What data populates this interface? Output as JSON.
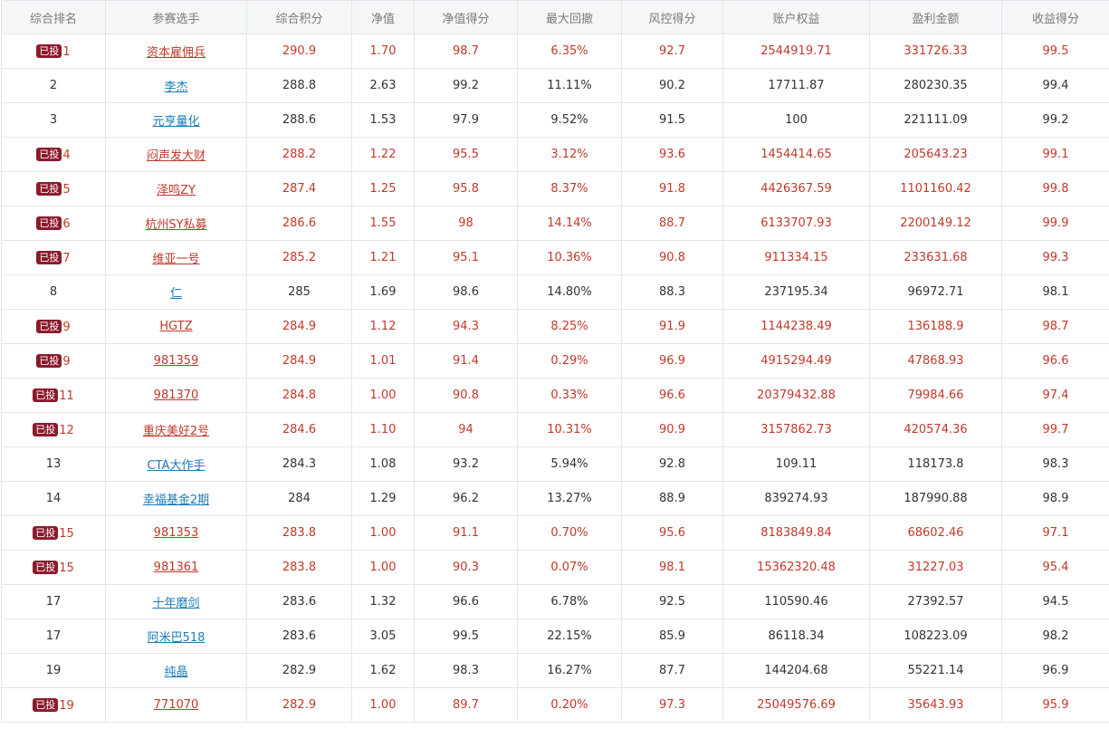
{
  "headers": [
    "综合排名",
    "参赛选手",
    "综合积分",
    "净值",
    "净值得分",
    "最大回撤",
    "风控得分",
    "账户权益",
    "盈利金额",
    "收益得分"
  ],
  "badge_label": "已投",
  "rows": [
    {
      "invested": true,
      "rank": "1",
      "name": "资本雇佣兵",
      "score": "290.9",
      "nav": "1.70",
      "nav_score": "98.7",
      "drawdown": "6.35%",
      "risk_score": "92.7",
      "equity": "2544919.71",
      "profit": "331726.33",
      "return_score": "99.5"
    },
    {
      "invested": false,
      "rank": "2",
      "name": "李杰",
      "score": "288.8",
      "nav": "2.63",
      "nav_score": "99.2",
      "drawdown": "11.11%",
      "risk_score": "90.2",
      "equity": "17711.87",
      "profit": "280230.35",
      "return_score": "99.4"
    },
    {
      "invested": false,
      "rank": "3",
      "name": "元亨量化",
      "score": "288.6",
      "nav": "1.53",
      "nav_score": "97.9",
      "drawdown": "9.52%",
      "risk_score": "91.5",
      "equity": "100",
      "profit": "221111.09",
      "return_score": "99.2"
    },
    {
      "invested": true,
      "rank": "4",
      "name": "闷声发大财",
      "score": "288.2",
      "nav": "1.22",
      "nav_score": "95.5",
      "drawdown": "3.12%",
      "risk_score": "93.6",
      "equity": "1454414.65",
      "profit": "205643.23",
      "return_score": "99.1"
    },
    {
      "invested": true,
      "rank": "5",
      "name": "泽鸣ZY",
      "score": "287.4",
      "nav": "1.25",
      "nav_score": "95.8",
      "drawdown": "8.37%",
      "risk_score": "91.8",
      "equity": "4426367.59",
      "profit": "1101160.42",
      "return_score": "99.8"
    },
    {
      "invested": true,
      "rank": "6",
      "name": "杭州SY私募",
      "score": "286.6",
      "nav": "1.55",
      "nav_score": "98",
      "drawdown": "14.14%",
      "risk_score": "88.7",
      "equity": "6133707.93",
      "profit": "2200149.12",
      "return_score": "99.9"
    },
    {
      "invested": true,
      "rank": "7",
      "name": "维亚一号",
      "score": "285.2",
      "nav": "1.21",
      "nav_score": "95.1",
      "drawdown": "10.36%",
      "risk_score": "90.8",
      "equity": "911334.15",
      "profit": "233631.68",
      "return_score": "99.3"
    },
    {
      "invested": false,
      "rank": "8",
      "name": "仁",
      "score": "285",
      "nav": "1.69",
      "nav_score": "98.6",
      "drawdown": "14.80%",
      "risk_score": "88.3",
      "equity": "237195.34",
      "profit": "96972.71",
      "return_score": "98.1"
    },
    {
      "invested": true,
      "rank": "9",
      "name": "HGTZ",
      "score": "284.9",
      "nav": "1.12",
      "nav_score": "94.3",
      "drawdown": "8.25%",
      "risk_score": "91.9",
      "equity": "1144238.49",
      "profit": "136188.9",
      "return_score": "98.7"
    },
    {
      "invested": true,
      "rank": "9",
      "name": "981359",
      "score": "284.9",
      "nav": "1.01",
      "nav_score": "91.4",
      "drawdown": "0.29%",
      "risk_score": "96.9",
      "equity": "4915294.49",
      "profit": "47868.93",
      "return_score": "96.6"
    },
    {
      "invested": true,
      "rank": "11",
      "name": "981370",
      "score": "284.8",
      "nav": "1.00",
      "nav_score": "90.8",
      "drawdown": "0.33%",
      "risk_score": "96.6",
      "equity": "20379432.88",
      "profit": "79984.66",
      "return_score": "97.4"
    },
    {
      "invested": true,
      "rank": "12",
      "name": "重庆美好2号",
      "score": "284.6",
      "nav": "1.10",
      "nav_score": "94",
      "drawdown": "10.31%",
      "risk_score": "90.9",
      "equity": "3157862.73",
      "profit": "420574.36",
      "return_score": "99.7"
    },
    {
      "invested": false,
      "rank": "13",
      "name": "CTA大作手",
      "score": "284.3",
      "nav": "1.08",
      "nav_score": "93.2",
      "drawdown": "5.94%",
      "risk_score": "92.8",
      "equity": "109.11",
      "profit": "118173.8",
      "return_score": "98.3"
    },
    {
      "invested": false,
      "rank": "14",
      "name": "幸福基金2期",
      "score": "284",
      "nav": "1.29",
      "nav_score": "96.2",
      "drawdown": "13.27%",
      "risk_score": "88.9",
      "equity": "839274.93",
      "profit": "187990.88",
      "return_score": "98.9"
    },
    {
      "invested": true,
      "rank": "15",
      "name": "981353",
      "score": "283.8",
      "nav": "1.00",
      "nav_score": "91.1",
      "drawdown": "0.70%",
      "risk_score": "95.6",
      "equity": "8183849.84",
      "profit": "68602.46",
      "return_score": "97.1"
    },
    {
      "invested": true,
      "rank": "15",
      "name": "981361",
      "score": "283.8",
      "nav": "1.00",
      "nav_score": "90.3",
      "drawdown": "0.07%",
      "risk_score": "98.1",
      "equity": "15362320.48",
      "profit": "31227.03",
      "return_score": "95.4"
    },
    {
      "invested": false,
      "rank": "17",
      "name": "十年磨剑",
      "score": "283.6",
      "nav": "1.32",
      "nav_score": "96.6",
      "drawdown": "6.78%",
      "risk_score": "92.5",
      "equity": "110590.46",
      "profit": "27392.57",
      "return_score": "94.5"
    },
    {
      "invested": false,
      "rank": "17",
      "name": "阿米巴518",
      "score": "283.6",
      "nav": "3.05",
      "nav_score": "99.5",
      "drawdown": "22.15%",
      "risk_score": "85.9",
      "equity": "86118.34",
      "profit": "108223.09",
      "return_score": "98.2"
    },
    {
      "invested": false,
      "rank": "19",
      "name": "纯晶",
      "score": "282.9",
      "nav": "1.62",
      "nav_score": "98.3",
      "drawdown": "16.27%",
      "risk_score": "87.7",
      "equity": "144204.68",
      "profit": "55221.14",
      "return_score": "96.9"
    },
    {
      "invested": true,
      "rank": "19",
      "name": "771070",
      "score": "282.9",
      "nav": "1.00",
      "nav_score": "89.7",
      "drawdown": "0.20%",
      "risk_score": "97.3",
      "equity": "25049576.69",
      "profit": "35643.93",
      "return_score": "95.9"
    }
  ]
}
